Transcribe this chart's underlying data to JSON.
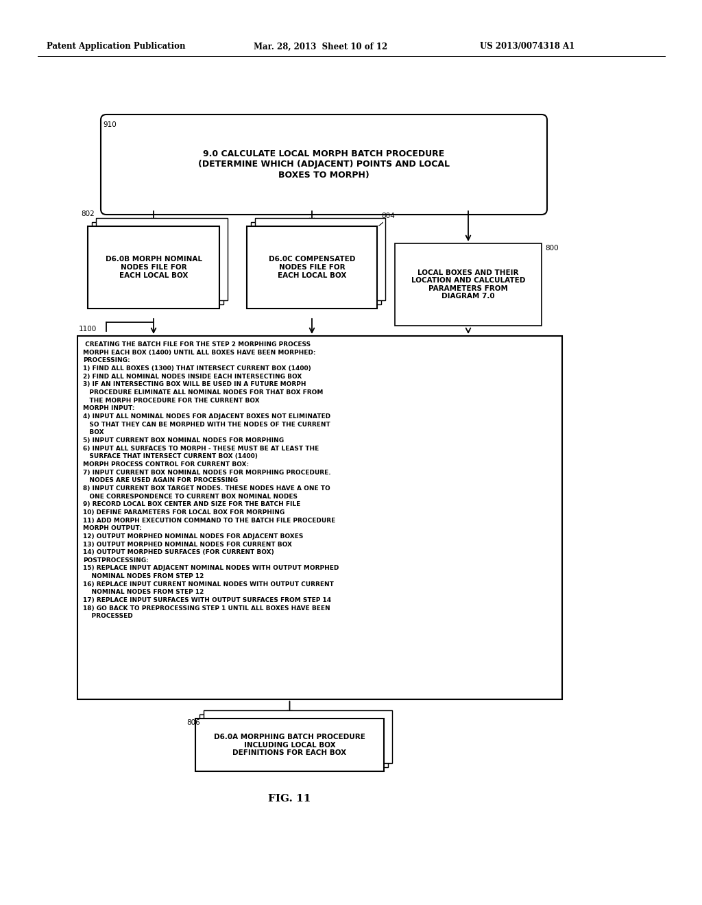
{
  "bg_color": "#ffffff",
  "header_left": "Patent Application Publication",
  "header_mid": "Mar. 28, 2013  Sheet 10 of 12",
  "header_right": "US 2013/0074318 A1",
  "fig_label": "FIG. 11",
  "top_box_text": "9.0 CALCULATE LOCAL MORPH BATCH PROCEDURE\n(DETERMINE WHICH (ADJACENT) POINTS AND LOCAL\nBOXES TO MORPH)",
  "top_box_label": "910",
  "label_802": "802",
  "box_d60b_text": "D6.0B MORPH NOMINAL\nNODES FILE FOR\nEACH LOCAL BOX",
  "label_804": "804",
  "box_d60c_text": "D6.0C COMPENSATED\nNODES FILE FOR\nEACH LOCAL BOX",
  "label_800": "800",
  "box_800_text": "LOCAL BOXES AND THEIR\nLOCATION AND CALCULATED\nPARAMETERS FROM\nDIAGRAM 7.0",
  "label_1100": "1100",
  "main_box_text": " CREATING THE BATCH FILE FOR THE STEP 2 MORPHING PROCESS\nMORPH EACH BOX (1400) UNTIL ALL BOXES HAVE BEEN MORPHED:\nPROCESSING:\n1) FIND ALL BOXES (1300) THAT INTERSECT CURRENT BOX (1400)\n2) FIND ALL NOMINAL NODES INSIDE EACH INTERSECTING BOX\n3) IF AN INTERSECTING BOX WILL BE USED IN A FUTURE MORPH\n   PROCEDURE ELIMINATE ALL NOMINAL NODES FOR THAT BOX FROM\n   THE MORPH PROCEDURE FOR THE CURRENT BOX\nMORPH INPUT:\n4) INPUT ALL NOMINAL NODES FOR ADJACENT BOXES NOT ELIMINATED\n   SO THAT THEY CAN BE MORPHED WITH THE NODES OF THE CURRENT\n   BOX\n5) INPUT CURRENT BOX NOMINAL NODES FOR MORPHING\n6) INPUT ALL SURFACES TO MORPH - THESE MUST BE AT LEAST THE\n   SURFACE THAT INTERSECT CURRENT BOX (1400)\nMORPH PROCESS CONTROL FOR CURRENT BOX:\n7) INPUT CURRENT BOX NOMINAL NODES FOR MORPHING PROCEDURE.\n   NODES ARE USED AGAIN FOR PROCESSING\n8) INPUT CURRENT BOX TARGET NODES. THESE NODES HAVE A ONE TO\n   ONE CORRESPONDENCE TO CURRENT BOX NOMINAL NODES\n9) RECORD LOCAL BOX CENTER AND SIZE FOR THE BATCH FILE\n10) DEFINE PARAMETERS FOR LOCAL BOX FOR MORPHING\n11) ADD MORPH EXECUTION COMMAND TO THE BATCH FILE PROCEDURE\nMORPH OUTPUT:\n12) OUTPUT MORPHED NOMINAL NODES FOR ADJACENT BOXES\n13) OUTPUT MORPHED NOMINAL NODES FOR CURRENT BOX\n14) OUTPUT MORPHED SURFACES (FOR CURRENT BOX)\nPOSTPROCESSING:\n15) REPLACE INPUT ADJACENT NOMINAL NODES WITH OUTPUT MORPHED\n    NOMINAL NODES FROM STEP 12\n16) REPLACE INPUT CURRENT NOMINAL NODES WITH OUTPUT CURRENT\n    NOMINAL NODES FROM STEP 12\n17) REPLACE INPUT SURFACES WITH OUTPUT SURFACES FROM STEP 14\n18) GO BACK TO PREPROCESSING STEP 1 UNTIL ALL BOXES HAVE BEEN\n    PROCESSED",
  "label_806": "806",
  "bottom_box_text": "D6.0A MORPHING BATCH PROCEDURE\nINCLUDING LOCAL BOX\nDEFINITIONS FOR EACH BOX"
}
